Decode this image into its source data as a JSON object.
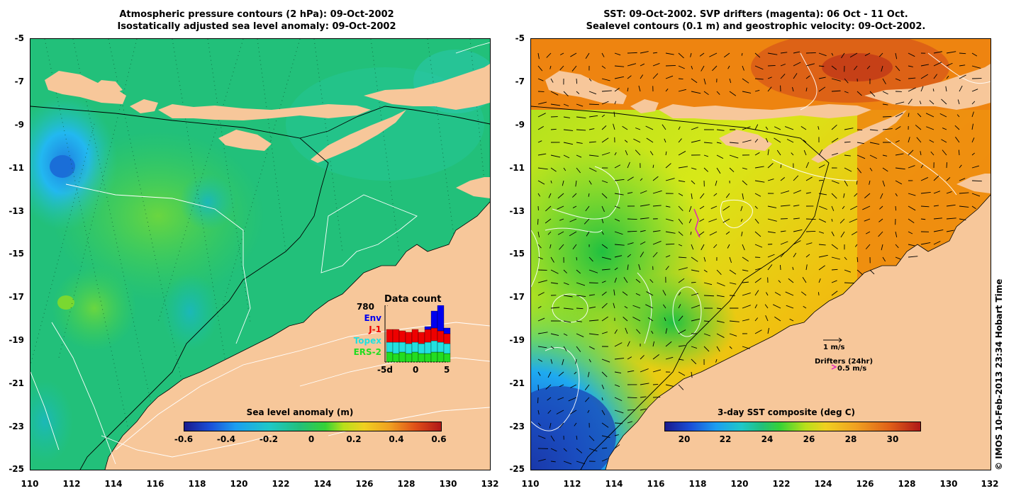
{
  "left_panel": {
    "title_line1": "Atmospheric pressure contours (2 hPa): 09-Oct-2002",
    "title_line2": "Isostatically adjusted sea level anomaly: 09-Oct-2002",
    "colorbar_title": "Sea level anomaly (m)",
    "colorbar_ticks": [
      "-0.6",
      "-0.4",
      "-0.2",
      "0",
      "0.2",
      "0.4",
      "0.6"
    ],
    "inset": {
      "title": "Data count",
      "max_label": "780",
      "series_labels": [
        {
          "name": "Env",
          "color": "#0000ee"
        },
        {
          "name": "J-1",
          "color": "#ee0000"
        },
        {
          "name": "Topex",
          "color": "#22e0e0"
        },
        {
          "name": "ERS-2",
          "color": "#22dd22"
        }
      ],
      "x_ticks": [
        "-5d",
        "0",
        "5"
      ]
    }
  },
  "right_panel": {
    "title_line1": "SST: 09-Oct-2002. SVP drifters (magenta): 06 Oct - 11 Oct.",
    "title_line2": "Sealevel contours (0.1 m) and geostrophic velocity: 09-Oct-2002.",
    "colorbar_title": "3-day SST composite (deg C)",
    "colorbar_ticks": [
      "20",
      "22",
      "24",
      "26",
      "28",
      "30"
    ],
    "velocity_scale_label": "1 m/s",
    "drifter_label": "Drifters (24hr)",
    "drifter_speed_label": "0.5 m/s"
  },
  "axes": {
    "y_ticks": [
      "-5",
      "-7",
      "-9",
      "-11",
      "-13",
      "-15",
      "-17",
      "-19",
      "-21",
      "-23",
      "-25"
    ],
    "x_ticks": [
      "110",
      "112",
      "114",
      "116",
      "118",
      "120",
      "122",
      "124",
      "126",
      "128",
      "130",
      "132"
    ]
  },
  "credit": "© IMOS 10-Feb-2013 23:34 Hobart Time",
  "colors": {
    "land": "#f7c79a",
    "sla_ocean": "#22c27a",
    "sst_warm": "#ee8a10"
  }
}
